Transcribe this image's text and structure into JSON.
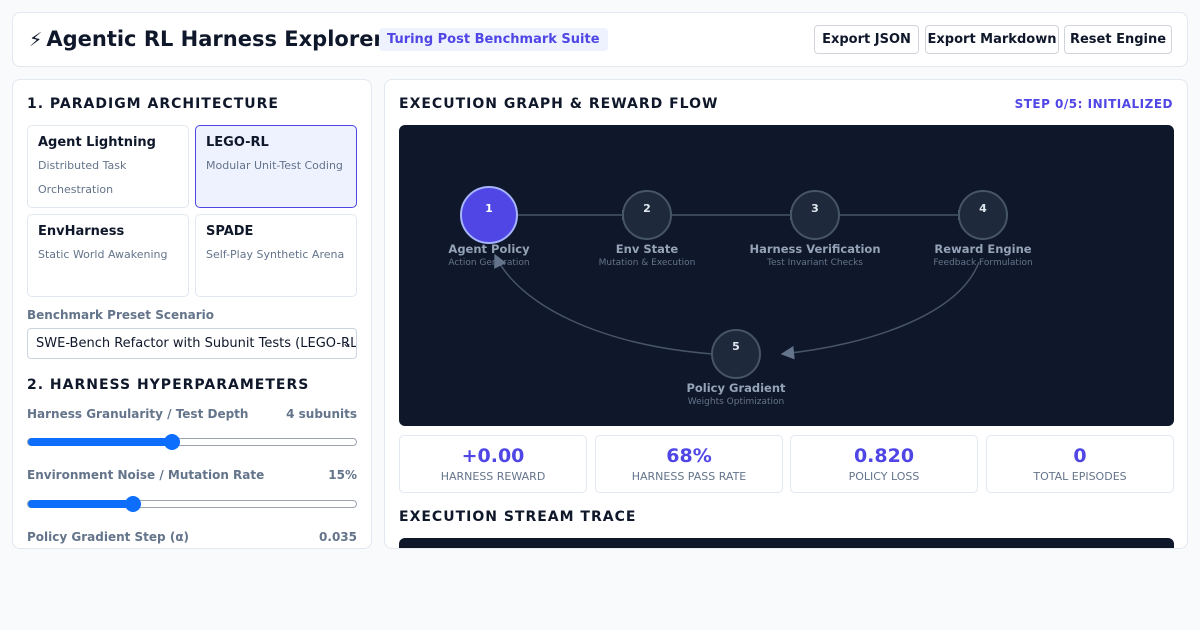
{
  "header": {
    "title": "Agentic RL Harness Explorer",
    "bolt_glyph": "⚡",
    "badge": "Turing Post Benchmark Suite",
    "buttons": {
      "export_json": "Export JSON",
      "export_markdown": "Export Markdown",
      "reset_engine": "Reset Engine"
    }
  },
  "left": {
    "section1_title": "1. PARADIGM ARCHITECTURE",
    "paradigms": [
      {
        "name": "Agent Lightning",
        "desc": "Distributed Task Orchestration",
        "selected": false
      },
      {
        "name": "LEGO-RL",
        "desc": "Modular Unit-Test Coding",
        "selected": true
      },
      {
        "name": "EnvHarness",
        "desc": "Static World Awakening",
        "selected": false
      },
      {
        "name": "SPADE",
        "desc": "Self-Play Synthetic Arena",
        "selected": false
      }
    ],
    "preset_label": "Benchmark Preset Scenario",
    "preset_value": "SWE-Bench Refactor with Subunit Tests (LEGO-RL)",
    "section2_title": "2. HARNESS HYPERPARAMETERS",
    "params": [
      {
        "label": "Harness Granularity / Test Depth",
        "value": "4 subunits",
        "level": 0.44
      },
      {
        "label": "Environment Noise / Mutation Rate",
        "value": "15%",
        "level": 0.32
      },
      {
        "label": "Policy Gradient Step (α)",
        "value": "0.035",
        "level": null
      }
    ]
  },
  "right": {
    "graph_title": "EXECUTION GRAPH & REWARD FLOW",
    "step_status": "STEP 0/5: INITIALIZED",
    "nodes": [
      {
        "num": "1",
        "title": "Agent Policy",
        "subtitle": "Action Generation",
        "active": true
      },
      {
        "num": "2",
        "title": "Env State",
        "subtitle": "Mutation & Execution",
        "active": false
      },
      {
        "num": "3",
        "title": "Harness Verification",
        "subtitle": "Test Invariant Checks",
        "active": false
      },
      {
        "num": "4",
        "title": "Reward Engine",
        "subtitle": "Feedback Formulation",
        "active": false
      },
      {
        "num": "5",
        "title": "Policy Gradient",
        "subtitle": "Weights Optimization",
        "active": false
      }
    ],
    "metrics": [
      {
        "value": "+0.00",
        "label": "Harness Reward"
      },
      {
        "value": "68%",
        "label": "Harness Pass Rate"
      },
      {
        "value": "0.820",
        "label": "Policy Loss"
      },
      {
        "value": "0",
        "label": "Total Episodes"
      }
    ],
    "trace_title": "EXECUTION STREAM TRACE"
  },
  "colors": {
    "accent": "#4f46e5",
    "graph_bg": "#0f172a",
    "node_idle": "#1e293b",
    "slider": "#0d6efd"
  }
}
